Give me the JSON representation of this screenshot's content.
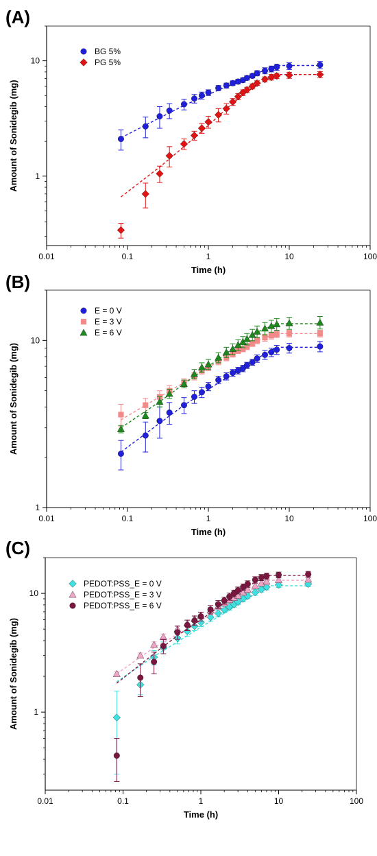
{
  "chart_data": [
    {
      "type": "scatter",
      "panel_label": "(A)",
      "xlabel": "Time (h)",
      "ylabel": "Amount of Sonidegib (mg)",
      "xscale": "log",
      "yscale": "log",
      "xlim": [
        0.01,
        100
      ],
      "ylim": [
        0.25,
        20
      ],
      "xticks": [
        0.01,
        0.1,
        1,
        10,
        100
      ],
      "xtick_labels": [
        "0.01",
        "0.1",
        "1",
        "10",
        "100"
      ],
      "yticks": [
        1,
        10
      ],
      "ytick_labels": [
        "1",
        "10"
      ],
      "grid": false,
      "legend_position": "top-left",
      "x": [
        0.083,
        0.167,
        0.25,
        0.33,
        0.5,
        0.67,
        0.83,
        1.0,
        1.33,
        1.67,
        2.0,
        2.33,
        2.67,
        3.0,
        3.5,
        4.0,
        5.0,
        6.0,
        7.0,
        10.0,
        24.0
      ],
      "series": [
        {
          "name": "BG 5%",
          "color": "#1f1fdc",
          "marker": "circle",
          "values": [
            2.1,
            2.7,
            3.3,
            3.7,
            4.2,
            4.7,
            5.0,
            5.3,
            5.8,
            6.1,
            6.4,
            6.6,
            6.8,
            7.1,
            7.4,
            7.8,
            8.2,
            8.5,
            8.8,
            9.0,
            9.2
          ],
          "errors": [
            0.42,
            0.55,
            0.7,
            0.55,
            0.45,
            0.4,
            0.35,
            0.3,
            0.3,
            0.3,
            0.3,
            0.3,
            0.3,
            0.3,
            0.3,
            0.4,
            0.5,
            0.5,
            0.55,
            0.6,
            0.65
          ],
          "fit": [
            [
              0.083,
              2.15
            ],
            [
              0.25,
              3.2
            ],
            [
              0.5,
              4.1
            ],
            [
              1.0,
              5.1
            ],
            [
              2.0,
              6.3
            ],
            [
              4.0,
              7.8
            ],
            [
              7.0,
              9.1
            ],
            [
              24.0,
              9.1
            ]
          ]
        },
        {
          "name": "PG 5%",
          "color": "#e01414",
          "marker": "diamond",
          "values": [
            0.34,
            0.7,
            1.05,
            1.5,
            1.9,
            2.25,
            2.6,
            2.95,
            3.4,
            3.85,
            4.4,
            4.9,
            5.3,
            5.6,
            6.0,
            6.4,
            6.9,
            7.2,
            7.4,
            7.5,
            7.6
          ],
          "errors": [
            0.05,
            0.17,
            0.17,
            0.3,
            0.2,
            0.2,
            0.25,
            0.35,
            0.45,
            0.4,
            0.3,
            0.3,
            0.3,
            0.3,
            0.3,
            0.3,
            0.35,
            0.4,
            0.4,
            0.45,
            0.45
          ],
          "fit": [
            [
              0.083,
              0.66
            ],
            [
              0.25,
              1.2
            ],
            [
              0.5,
              1.8
            ],
            [
              1.0,
              2.75
            ],
            [
              2.0,
              4.3
            ],
            [
              4.0,
              6.2
            ],
            [
              7.0,
              7.6
            ],
            [
              24.0,
              7.6
            ]
          ]
        }
      ]
    },
    {
      "type": "scatter",
      "panel_label": "(B)",
      "xlabel": "Time (h)",
      "ylabel": "Amount of Sonidegib (mg)",
      "xscale": "log",
      "yscale": "log",
      "xlim": [
        0.01,
        100
      ],
      "ylim": [
        1,
        20
      ],
      "xticks": [
        0.01,
        0.1,
        1,
        10,
        100
      ],
      "xtick_labels": [
        "0.01",
        "0.1",
        "1",
        "10",
        "100"
      ],
      "yticks": [
        1,
        10
      ],
      "ytick_labels": [
        "1",
        "10"
      ],
      "grid": false,
      "legend_position": "top-left",
      "x": [
        0.083,
        0.167,
        0.25,
        0.33,
        0.5,
        0.67,
        0.83,
        1.0,
        1.33,
        1.67,
        2.0,
        2.33,
        2.67,
        3.0,
        3.5,
        4.0,
        5.0,
        6.0,
        7.0,
        10.0,
        24.0
      ],
      "series": [
        {
          "name": "E = 0 V",
          "color": "#1f1fdc",
          "marker": "circle",
          "values": [
            2.1,
            2.7,
            3.3,
            3.7,
            4.1,
            4.6,
            4.9,
            5.3,
            5.8,
            6.1,
            6.4,
            6.6,
            6.8,
            7.1,
            7.4,
            7.8,
            8.2,
            8.5,
            8.8,
            9.0,
            9.2
          ],
          "errors": [
            0.42,
            0.55,
            0.7,
            0.55,
            0.45,
            0.4,
            0.35,
            0.3,
            0.3,
            0.3,
            0.3,
            0.3,
            0.3,
            0.3,
            0.3,
            0.4,
            0.5,
            0.5,
            0.55,
            0.6,
            0.65
          ],
          "fit": [
            [
              0.083,
              2.15
            ],
            [
              0.25,
              3.2
            ],
            [
              0.5,
              4.1
            ],
            [
              1.0,
              5.1
            ],
            [
              2.0,
              6.3
            ],
            [
              4.0,
              7.8
            ],
            [
              7.0,
              9.1
            ],
            [
              24.0,
              9.1
            ]
          ]
        },
        {
          "name": "E = 3 V",
          "color": "#f28a8a",
          "marker": "square",
          "values": [
            3.6,
            4.1,
            4.6,
            5.0,
            5.6,
            6.1,
            6.6,
            6.9,
            7.5,
            7.9,
            8.3,
            8.7,
            8.9,
            9.2,
            9.6,
            10.0,
            10.4,
            10.7,
            10.9,
            11.0,
            11.0
          ],
          "errors": [
            0.55,
            0.4,
            0.4,
            0.35,
            0.3,
            0.3,
            0.3,
            0.3,
            0.35,
            0.35,
            0.35,
            0.35,
            0.35,
            0.4,
            0.4,
            0.45,
            0.5,
            0.5,
            0.5,
            0.5,
            0.5
          ],
          "fit": [
            [
              0.083,
              3.35
            ],
            [
              0.25,
              4.6
            ],
            [
              0.5,
              5.6
            ],
            [
              1.0,
              6.9
            ],
            [
              2.0,
              8.4
            ],
            [
              4.0,
              10.0
            ],
            [
              7.0,
              11.0
            ],
            [
              24.0,
              11.0
            ]
          ]
        },
        {
          "name": "E = 6 V",
          "color": "#1e8a1e",
          "marker": "triangle",
          "values": [
            2.95,
            3.55,
            4.3,
            4.8,
            5.5,
            6.3,
            6.9,
            7.2,
            7.9,
            8.5,
            8.9,
            9.4,
            9.8,
            10.2,
            10.8,
            11.3,
            11.8,
            12.2,
            12.5,
            12.7,
            12.8
          ],
          "errors": [
            0.15,
            0.15,
            0.3,
            0.3,
            0.3,
            0.4,
            0.45,
            0.5,
            0.55,
            0.6,
            0.65,
            0.7,
            0.75,
            0.8,
            0.85,
            0.9,
            1.0,
            1.0,
            1.0,
            1.05,
            1.1
          ],
          "fit": [
            [
              0.083,
              3.0
            ],
            [
              0.25,
              4.3
            ],
            [
              0.5,
              5.5
            ],
            [
              1.0,
              7.0
            ],
            [
              2.0,
              8.9
            ],
            [
              4.0,
              11.2
            ],
            [
              7.0,
              12.6
            ],
            [
              24.0,
              12.6
            ]
          ]
        }
      ]
    },
    {
      "type": "scatter",
      "panel_label": "(C)",
      "xlabel": "Time (h)",
      "ylabel": "Amount of Sonidegib (mg)",
      "xscale": "log",
      "yscale": "log",
      "xlim": [
        0.01,
        100
      ],
      "ylim": [
        0.22,
        20
      ],
      "xticks": [
        0.01,
        0.1,
        1,
        10,
        100
      ],
      "xtick_labels": [
        "0.01",
        "0.1",
        "1",
        "10",
        "100"
      ],
      "yticks": [
        1,
        10
      ],
      "ytick_labels": [
        "1",
        "10"
      ],
      "grid": false,
      "legend_position": "top-left",
      "x": [
        0.083,
        0.167,
        0.25,
        0.33,
        0.5,
        0.67,
        0.83,
        1.0,
        1.33,
        1.67,
        2.0,
        2.33,
        2.67,
        3.0,
        3.5,
        4.0,
        5.0,
        6.0,
        7.0,
        10.0,
        24.0
      ],
      "series": [
        {
          "name": "PEDOT:PSS_E = 0 V",
          "color": "#3ee0e0",
          "marker": "diamond",
          "values": [
            0.9,
            1.7,
            2.9,
            3.5,
            4.2,
            4.8,
            5.3,
            5.7,
            6.3,
            6.8,
            7.3,
            7.7,
            8.1,
            8.5,
            9.0,
            9.5,
            10.2,
            10.8,
            11.3,
            11.8,
            12.0
          ],
          "errors": [
            0.6,
            0.3,
            0.4,
            0.4,
            0.45,
            0.45,
            0.45,
            0.45,
            0.45,
            0.45,
            0.45,
            0.5,
            0.5,
            0.5,
            0.5,
            0.5,
            0.55,
            0.55,
            0.6,
            0.6,
            0.6
          ],
          "fit": [
            [
              0.083,
              1.8
            ],
            [
              0.25,
              2.95
            ],
            [
              0.5,
              3.9
            ],
            [
              1.0,
              5.2
            ],
            [
              2.0,
              6.8
            ],
            [
              4.0,
              9.0
            ],
            [
              7.0,
              11.6
            ],
            [
              24.0,
              11.6
            ]
          ]
        },
        {
          "name": "PEDOT:PSS_E = 3 V",
          "color": "#f0a4c8",
          "marker": "triangle",
          "values": [
            2.1,
            3.0,
            3.7,
            4.3,
            5.0,
            5.6,
            6.1,
            6.5,
            7.2,
            7.8,
            8.3,
            8.8,
            9.2,
            9.6,
            10.2,
            10.8,
            11.6,
            12.2,
            12.6,
            13.0,
            13.1
          ],
          "errors": [
            0.1,
            0.15,
            0.2,
            0.25,
            0.3,
            0.35,
            0.35,
            0.4,
            0.4,
            0.45,
            0.45,
            0.5,
            0.5,
            0.55,
            0.55,
            0.6,
            0.65,
            0.65,
            0.7,
            0.7,
            0.7
          ],
          "fit": [
            [
              0.083,
              2.1
            ],
            [
              0.25,
              3.5
            ],
            [
              0.5,
              4.5
            ],
            [
              1.0,
              5.9
            ],
            [
              2.0,
              7.7
            ],
            [
              4.0,
              10.2
            ],
            [
              7.0,
              12.9
            ],
            [
              24.0,
              12.9
            ]
          ]
        },
        {
          "name": "PEDOT:PSS_E = 6 V",
          "color": "#7a1640",
          "marker": "circle",
          "values": [
            0.43,
            1.95,
            2.65,
            3.6,
            4.7,
            5.4,
            5.9,
            6.4,
            7.3,
            8.1,
            8.7,
            9.4,
            10.0,
            10.6,
            11.3,
            12.0,
            13.0,
            13.6,
            14.0,
            14.3,
            14.5
          ],
          "errors": [
            0.17,
            0.6,
            0.55,
            0.5,
            0.6,
            0.55,
            0.55,
            0.55,
            0.6,
            0.6,
            0.6,
            0.65,
            0.65,
            0.7,
            0.7,
            0.75,
            0.8,
            0.8,
            0.8,
            0.8,
            0.8
          ],
          "fit": [
            [
              0.083,
              1.75
            ],
            [
              0.25,
              3.1
            ],
            [
              0.5,
              4.4
            ],
            [
              1.0,
              6.0
            ],
            [
              2.0,
              8.3
            ],
            [
              4.0,
              11.4
            ],
            [
              7.0,
              14.2
            ],
            [
              24.0,
              14.2
            ]
          ]
        }
      ]
    }
  ]
}
